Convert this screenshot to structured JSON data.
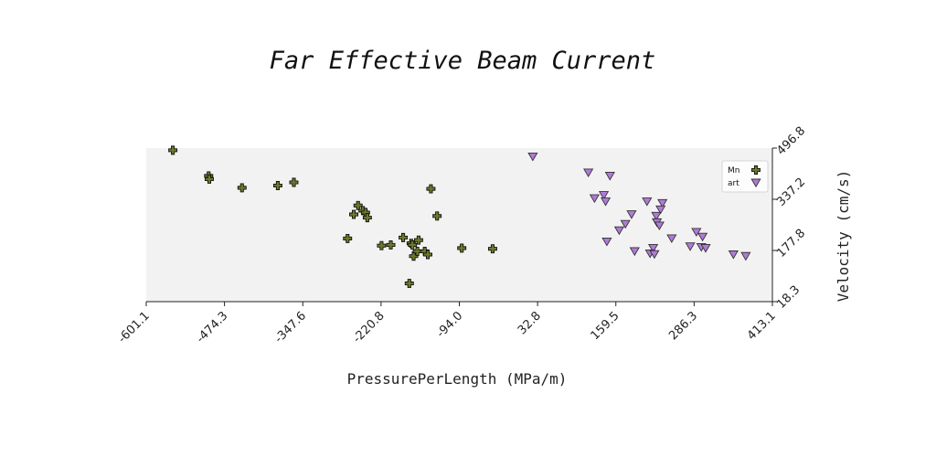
{
  "chart_data": {
    "type": "scatter",
    "title": "Far Effective Beam Current",
    "xlabel": "PressurePerLength (MPa/m)",
    "ylabel": "Velocity (cm/s)",
    "xlim": [
      -601.1,
      413.1
    ],
    "ylim": [
      18.3,
      496.8
    ],
    "xticks": [
      "-601.1",
      "-474.3",
      "-347.6",
      "-220.8",
      "-94.0",
      "32.8",
      "159.5",
      "286.3",
      "413.1"
    ],
    "yticks": [
      "18.3",
      "177.8",
      "337.2",
      "496.8"
    ],
    "grid": false,
    "legend_position": "top-right",
    "series": [
      {
        "name": "Mn",
        "marker": "plus",
        "color": "#6b7a2a",
        "points": [
          [
            -558,
            490
          ],
          [
            -500,
            410
          ],
          [
            -499,
            400
          ],
          [
            -446,
            373
          ],
          [
            -388,
            380
          ],
          [
            -362,
            390
          ],
          [
            -275,
            215
          ],
          [
            -265,
            290
          ],
          [
            -258,
            318
          ],
          [
            -250,
            302
          ],
          [
            -246,
            296
          ],
          [
            -243,
            280
          ],
          [
            -220,
            193
          ],
          [
            -205,
            195
          ],
          [
            -185,
            218
          ],
          [
            -172,
            200
          ],
          [
            -170,
            195
          ],
          [
            -168,
            160
          ],
          [
            -162,
            175
          ],
          [
            -160,
            210
          ],
          [
            -150,
            175
          ],
          [
            -145,
            165
          ],
          [
            -140,
            370
          ],
          [
            -130,
            285
          ],
          [
            -90,
            185
          ],
          [
            -40,
            183
          ],
          [
            -175,
            75
          ]
        ]
      },
      {
        "name": "art",
        "marker": "triangle-down",
        "color": "#b07ad6",
        "points": [
          [
            25,
            470
          ],
          [
            115,
            420
          ],
          [
            150,
            410
          ],
          [
            125,
            340
          ],
          [
            140,
            350
          ],
          [
            143,
            330
          ],
          [
            185,
            290
          ],
          [
            175,
            260
          ],
          [
            165,
            240
          ],
          [
            145,
            205
          ],
          [
            190,
            175
          ],
          [
            210,
            330
          ],
          [
            235,
            325
          ],
          [
            232,
            305
          ],
          [
            225,
            285
          ],
          [
            226,
            265
          ],
          [
            230,
            255
          ],
          [
            250,
            215
          ],
          [
            220,
            185
          ],
          [
            215,
            168
          ],
          [
            222,
            166
          ],
          [
            280,
            190
          ],
          [
            290,
            235
          ],
          [
            300,
            220
          ],
          [
            298,
            188
          ],
          [
            305,
            185
          ],
          [
            350,
            165
          ],
          [
            370,
            160
          ]
        ]
      }
    ]
  }
}
